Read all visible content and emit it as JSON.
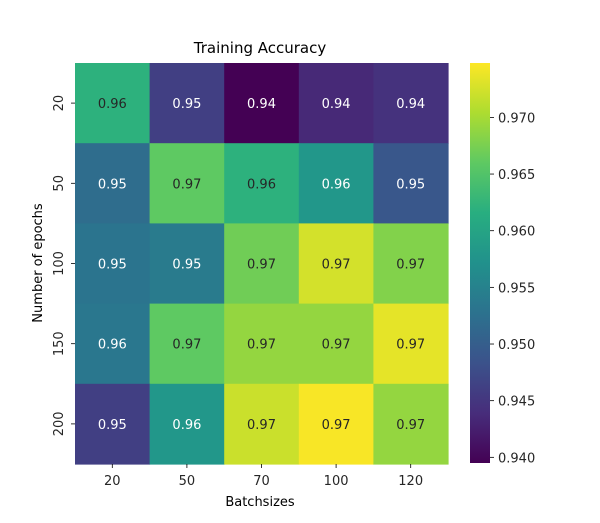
{
  "chart_data": {
    "type": "heatmap",
    "title": "Training Accuracy",
    "xlabel": "Batchsizes",
    "ylabel": "Number of epochs",
    "x_categories": [
      "20",
      "50",
      "70",
      "100",
      "120"
    ],
    "y_categories": [
      "20",
      "50",
      "100",
      "150",
      "200"
    ],
    "values": [
      [
        0.962,
        0.946,
        0.9395,
        0.9435,
        0.9445
      ],
      [
        0.952,
        0.966,
        0.962,
        0.958,
        0.949
      ],
      [
        0.953,
        0.954,
        0.967,
        0.9725,
        0.968
      ],
      [
        0.9535,
        0.966,
        0.969,
        0.969,
        0.9735
      ],
      [
        0.946,
        0.958,
        0.972,
        0.9745,
        0.969
      ]
    ],
    "annotations": [
      [
        "0.96",
        "0.95",
        "0.94",
        "0.94",
        "0.94"
      ],
      [
        "0.95",
        "0.97",
        "0.96",
        "0.96",
        "0.95"
      ],
      [
        "0.95",
        "0.95",
        "0.97",
        "0.97",
        "0.97"
      ],
      [
        "0.96",
        "0.97",
        "0.97",
        "0.97",
        "0.97"
      ],
      [
        "0.95",
        "0.96",
        "0.97",
        "0.97",
        "0.97"
      ]
    ],
    "colorscale": "viridis",
    "vmin": 0.9395,
    "vmax": 0.9748,
    "colorbar_ticks": [
      "0.940",
      "0.945",
      "0.950",
      "0.955",
      "0.960",
      "0.965",
      "0.970"
    ]
  }
}
